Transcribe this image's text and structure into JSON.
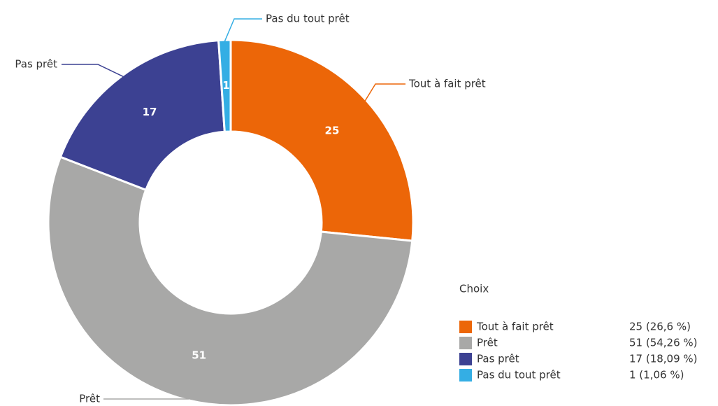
{
  "chart_data": {
    "type": "donut",
    "categories": [
      "Tout à fait prêt",
      "Prêt",
      "Pas prêt",
      "Pas du tout prêt"
    ],
    "values": [
      25,
      51,
      17,
      1
    ],
    "colors": [
      "#ec6608",
      "#a8a8a7",
      "#3c4192",
      "#34aee4"
    ],
    "legend_title": "Choix",
    "value_labels": [
      "25 (26,6 %)",
      "51 (54,26 %)",
      "17 (18,09 %)",
      "1 (1,06 %)"
    ],
    "legend": "bottom-right"
  }
}
